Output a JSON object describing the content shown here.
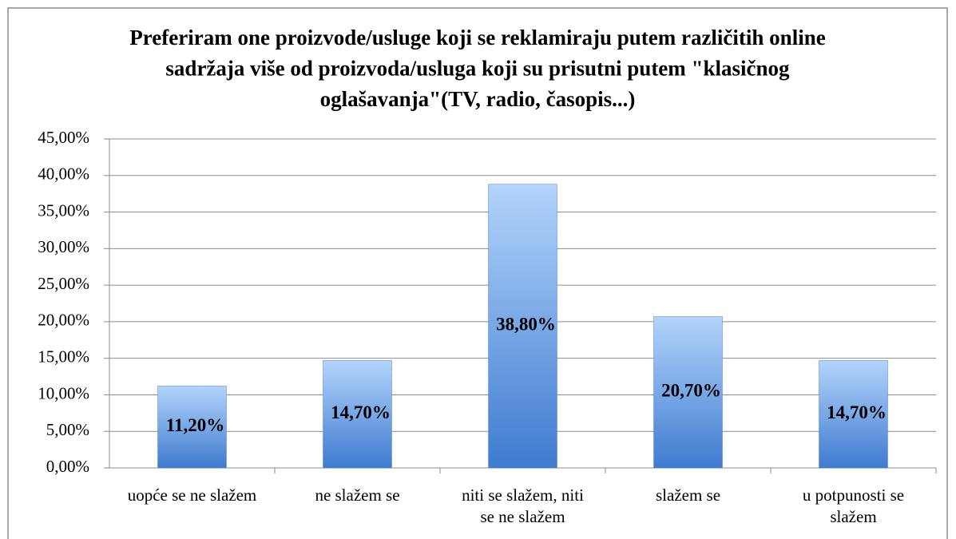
{
  "chart_data": {
    "type": "bar",
    "title": "Preferiram one proizvode/usluge koji se reklamiraju putem različitih online sadržaja više od proizvoda/usluga koji su prisutni putem \"klasičnog oglašavanja\"(TV, radio, časopis...)",
    "categories": [
      "uopće se ne slažem",
      "ne slažem se",
      "niti se slažem, niti se ne slažem",
      "slažem se",
      "u potpunosti se slažem"
    ],
    "values": [
      11.2,
      14.7,
      38.8,
      20.7,
      14.7
    ],
    "value_labels": [
      "11,20%",
      "14,70%",
      "38,80%",
      "20,70%",
      "14,70%"
    ],
    "color": "#4a86d6",
    "ylim": [
      0,
      45
    ],
    "yticks": [
      {
        "value": 0,
        "label": "0,00%"
      },
      {
        "value": 5,
        "label": "5,00%"
      },
      {
        "value": 10,
        "label": "10,00%"
      },
      {
        "value": 15,
        "label": "15,00%"
      },
      {
        "value": 20,
        "label": "20,00%"
      },
      {
        "value": 25,
        "label": "25,00%"
      },
      {
        "value": 30,
        "label": "30,00%"
      },
      {
        "value": 35,
        "label": "35,00%"
      },
      {
        "value": 40,
        "label": "40,00%"
      },
      {
        "value": 45,
        "label": "45,00%"
      }
    ],
    "grid": true
  }
}
